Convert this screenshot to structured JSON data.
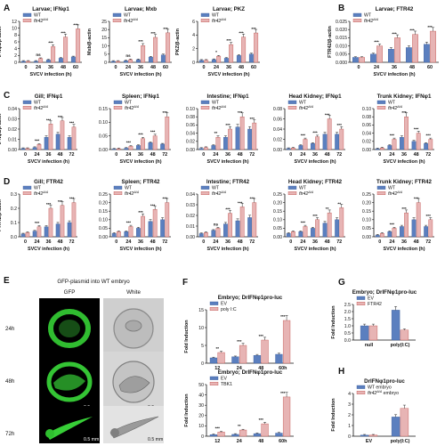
{
  "colors": {
    "wt": "#5b7fbf",
    "mut": "#e7b4b4",
    "mut_edge": "#c0504d",
    "axis": "#111111"
  },
  "legend": {
    "wt": "WT",
    "mut": "ftr42",
    "mut_sup": "Δ/Δ"
  },
  "panelE": {
    "label": "E",
    "title": "GFP-plasmid into WT embryo",
    "col_gfp": "GFP",
    "col_white": "White",
    "rows": [
      "24h",
      "48h",
      "72h"
    ],
    "scale_label": "0.5 mm"
  },
  "chart_data": [
    {
      "panel": "A",
      "type": "bar",
      "title": "Larvae; IFNφ1",
      "ylabel": "IFNφ1/β-actin",
      "xlabel": "SVCV infection (h)",
      "categories": [
        "0",
        "24",
        "36",
        "48",
        "60"
      ],
      "ylim": [
        0,
        12
      ],
      "yticks": [
        0,
        2,
        4,
        6,
        8,
        10,
        12
      ],
      "series": [
        {
          "key": "wt",
          "values": [
            0.3,
            0.3,
            0.7,
            1.2,
            1.6
          ]
        },
        {
          "key": "mut",
          "values": [
            0.3,
            1.1,
            4.6,
            7.4,
            9.8
          ]
        }
      ],
      "sig": [
        "",
        "ns",
        "***",
        "***",
        "***"
      ]
    },
    {
      "panel": "",
      "type": "bar",
      "title": "Larvae; Mxb",
      "ylabel": "Mxb/β-actin",
      "xlabel": "SVCV infection (h)",
      "categories": [
        "0",
        "24",
        "36",
        "48",
        "60"
      ],
      "ylim": [
        0,
        25
      ],
      "yticks": [
        0,
        5,
        10,
        15,
        20,
        25
      ],
      "series": [
        {
          "key": "wt",
          "values": [
            0.6,
            0.9,
            1.6,
            3.2,
            4.5
          ]
        },
        {
          "key": "mut",
          "values": [
            0.6,
            1.6,
            10.2,
            15.2,
            18.0
          ]
        }
      ],
      "sig": [
        "",
        "ns",
        "***",
        "***",
        "***"
      ]
    },
    {
      "panel": "",
      "type": "bar",
      "title": "Larvae; PKZ",
      "ylabel": "PKZ/β-actin",
      "xlabel": "SVCV infection (h)",
      "categories": [
        "0",
        "24",
        "36",
        "48",
        "60"
      ],
      "ylim": [
        0,
        6
      ],
      "yticks": [
        0,
        2,
        4,
        6
      ],
      "series": [
        {
          "key": "wt",
          "values": [
            0.3,
            0.4,
            0.6,
            1.0,
            1.2
          ]
        },
        {
          "key": "mut",
          "values": [
            0.3,
            0.9,
            2.6,
            3.7,
            4.3
          ]
        }
      ],
      "sig": [
        "",
        "*",
        "***",
        "***",
        "***"
      ]
    },
    {
      "panel": "B",
      "type": "bar",
      "title": "Larvae; FTR42",
      "ylabel": "FTR42/β-actin",
      "xlabel": "SVCV infection (h)",
      "categories": [
        "0",
        "24",
        "36",
        "48",
        "60"
      ],
      "ylim": [
        0,
        0.025
      ],
      "yticks": [
        0,
        0.005,
        0.01,
        0.015,
        0.02,
        0.025
      ],
      "tickfmt": 3,
      "series": [
        {
          "key": "wt",
          "values": [
            0.003,
            0.005,
            0.008,
            0.009,
            0.011
          ]
        },
        {
          "key": "mut",
          "values": [
            0.003,
            0.01,
            0.015,
            0.017,
            0.019
          ]
        }
      ],
      "sig": [
        "",
        "***",
        "***",
        "***",
        "***"
      ]
    },
    {
      "panel": "C",
      "type": "bar",
      "title": "Gill; IFNφ1",
      "ylabel": "IFNφ1/β-actin",
      "xlabel": "SVCV infection (h)",
      "categories": [
        "0",
        "24",
        "36",
        "48",
        "72"
      ],
      "ylim": [
        0,
        0.04
      ],
      "yticks": [
        0,
        0.01,
        0.02,
        0.03,
        0.04
      ],
      "tickfmt": 2,
      "series": [
        {
          "key": "wt",
          "values": [
            0.001,
            0.002,
            0.012,
            0.015,
            0.012
          ]
        },
        {
          "key": "mut",
          "values": [
            0.001,
            0.005,
            0.025,
            0.028,
            0.022
          ]
        }
      ],
      "sig": [
        "",
        "***",
        "***",
        "***",
        "***"
      ]
    },
    {
      "panel": "",
      "type": "bar",
      "title": "Spleen; IFNφ1",
      "ylabel": "",
      "xlabel": "SVCV infection (h)",
      "categories": [
        "0",
        "24",
        "36",
        "48",
        "72"
      ],
      "ylim": [
        0,
        0.15
      ],
      "yticks": [
        0,
        0.05,
        0.1,
        0.15
      ],
      "tickfmt": 2,
      "series": [
        {
          "key": "wt",
          "values": [
            0.002,
            0.005,
            0.015,
            0.025,
            0.02
          ]
        },
        {
          "key": "mut",
          "values": [
            0.003,
            0.012,
            0.04,
            0.05,
            0.12
          ]
        }
      ],
      "sig": [
        "",
        "***",
        "***",
        "***",
        "***"
      ]
    },
    {
      "panel": "",
      "type": "bar",
      "title": "Intestine; IFNφ1",
      "ylabel": "",
      "xlabel": "SVCV infection (h)",
      "categories": [
        "0",
        "24",
        "36",
        "48",
        "72"
      ],
      "ylim": [
        0,
        0.1
      ],
      "yticks": [
        0,
        0.02,
        0.04,
        0.06,
        0.08,
        0.1
      ],
      "tickfmt": 2,
      "series": [
        {
          "key": "wt",
          "values": [
            0.003,
            0.01,
            0.03,
            0.055,
            0.05
          ]
        },
        {
          "key": "mut",
          "values": [
            0.005,
            0.03,
            0.05,
            0.08,
            0.065
          ]
        }
      ],
      "sig": [
        "",
        "**",
        "***",
        "***",
        "***"
      ]
    },
    {
      "panel": "",
      "type": "bar",
      "title": "Head Kidney; IFNφ1",
      "ylabel": "",
      "xlabel": "SVCV infection (h)",
      "categories": [
        "0",
        "24",
        "36",
        "48",
        "72"
      ],
      "ylim": [
        0,
        0.08
      ],
      "yticks": [
        0,
        0.02,
        0.04,
        0.06,
        0.08
      ],
      "tickfmt": 2,
      "series": [
        {
          "key": "wt",
          "values": [
            0.002,
            0.008,
            0.012,
            0.03,
            0.03
          ]
        },
        {
          "key": "mut",
          "values": [
            0.003,
            0.02,
            0.025,
            0.06,
            0.04
          ]
        }
      ],
      "sig": [
        "",
        "***",
        "***",
        "***",
        "***"
      ]
    },
    {
      "panel": "",
      "type": "bar",
      "title": "Trunk Kidney; IFNφ1",
      "ylabel": "",
      "xlabel": "SVCV infection (h)",
      "categories": [
        "0",
        "24",
        "36",
        "48",
        "72"
      ],
      "ylim": [
        0,
        0.1
      ],
      "yticks": [
        0,
        0.02,
        0.04,
        0.06,
        0.08,
        0.1
      ],
      "tickfmt": 2,
      "series": [
        {
          "key": "wt",
          "values": [
            0.002,
            0.01,
            0.03,
            0.02,
            0.015
          ]
        },
        {
          "key": "mut",
          "values": [
            0.004,
            0.025,
            0.08,
            0.04,
            0.025
          ]
        }
      ],
      "sig": [
        "",
        "***",
        "***",
        "***",
        "***"
      ]
    },
    {
      "panel": "D",
      "type": "bar",
      "title": "Gill; FTR42",
      "ylabel": "FTR42/β-actin",
      "xlabel": "SVCV infection (h)",
      "categories": [
        "0",
        "24",
        "36",
        "48",
        "72"
      ],
      "ylim": [
        0,
        0.3
      ],
      "yticks": [
        0,
        0.1,
        0.2,
        0.3
      ],
      "tickfmt": 1,
      "series": [
        {
          "key": "wt",
          "values": [
            0.02,
            0.04,
            0.07,
            0.09,
            0.1
          ]
        },
        {
          "key": "mut",
          "values": [
            0.03,
            0.07,
            0.2,
            0.22,
            0.24
          ]
        }
      ],
      "sig": [
        "",
        "***",
        "***",
        "***",
        "***"
      ]
    },
    {
      "panel": "",
      "type": "bar",
      "title": "Spleen; FTR42",
      "ylabel": "",
      "xlabel": "SVCV infection (h)",
      "categories": [
        "0",
        "24",
        "36",
        "48",
        "72"
      ],
      "ylim": [
        0,
        0.25
      ],
      "yticks": [
        0,
        0.05,
        0.1,
        0.15,
        0.2,
        0.25
      ],
      "tickfmt": 2,
      "series": [
        {
          "key": "wt",
          "values": [
            0.02,
            0.03,
            0.05,
            0.09,
            0.1
          ]
        },
        {
          "key": "mut",
          "values": [
            0.03,
            0.06,
            0.12,
            0.16,
            0.2
          ]
        }
      ],
      "sig": [
        "",
        "***",
        "***",
        "***",
        "***"
      ]
    },
    {
      "panel": "",
      "type": "bar",
      "title": "Intestine; FTR42",
      "ylabel": "",
      "xlabel": "SVCV infection (h)",
      "categories": [
        "0",
        "24",
        "36",
        "48",
        "72"
      ],
      "ylim": [
        0,
        0.04
      ],
      "yticks": [
        0,
        0.01,
        0.02,
        0.03,
        0.04
      ],
      "tickfmt": 2,
      "series": [
        {
          "key": "wt",
          "values": [
            0.003,
            0.006,
            0.012,
            0.015,
            0.018
          ]
        },
        {
          "key": "mut",
          "values": [
            0.004,
            0.008,
            0.022,
            0.028,
            0.032
          ]
        }
      ],
      "sig": [
        "",
        "ns",
        "***",
        "***",
        "***"
      ]
    },
    {
      "panel": "",
      "type": "bar",
      "title": "Head Kidney; FTR42",
      "ylabel": "",
      "xlabel": "SVCV infection (h)",
      "categories": [
        "0",
        "24",
        "36",
        "48",
        "72"
      ],
      "ylim": [
        0,
        0.25
      ],
      "yticks": [
        0,
        0.05,
        0.1,
        0.15,
        0.2,
        0.25
      ],
      "tickfmt": 2,
      "series": [
        {
          "key": "wt",
          "values": [
            0.02,
            0.03,
            0.05,
            0.08,
            0.1
          ]
        },
        {
          "key": "mut",
          "values": [
            0.03,
            0.06,
            0.1,
            0.14,
            0.17
          ]
        }
      ],
      "sig": [
        "",
        "***",
        "***",
        "**",
        "**"
      ]
    },
    {
      "panel": "",
      "type": "bar",
      "title": "Trunk Kidney; FTR42",
      "ylabel": "",
      "xlabel": "SVCV infection (h)",
      "categories": [
        "0",
        "24",
        "36",
        "48",
        "72"
      ],
      "ylim": [
        0,
        0.25
      ],
      "yticks": [
        0,
        0.05,
        0.1,
        0.15,
        0.2,
        0.25
      ],
      "tickfmt": 2,
      "series": [
        {
          "key": "wt",
          "values": [
            0.01,
            0.03,
            0.06,
            0.1,
            0.06
          ]
        },
        {
          "key": "mut",
          "values": [
            0.02,
            0.05,
            0.14,
            0.2,
            0.1
          ]
        }
      ],
      "sig": [
        "",
        "***",
        "***",
        "***",
        "***"
      ]
    },
    {
      "panel": "F",
      "type": "bar",
      "title": "Embryo; DrIFNφ1pro-luc",
      "ylabel": "Fold Induction",
      "xlabel": "",
      "categories": [
        "12",
        "24",
        "48",
        "60h"
      ],
      "ylim": [
        0,
        15
      ],
      "yticks": [
        0,
        5,
        10,
        15
      ],
      "series": [
        {
          "key": "ev",
          "name": "EV",
          "values": [
            1.5,
            1.8,
            2.2,
            2.5
          ]
        },
        {
          "key": "mut",
          "name": "poly I:C",
          "values": [
            3.0,
            5.0,
            6.5,
            12.0
          ]
        }
      ],
      "sig": [
        "**",
        "***",
        "***",
        "***"
      ]
    },
    {
      "panel": "",
      "type": "bar",
      "title": "Embryo; DrIFNφ1pro-luc",
      "ylabel": "Fold Induction",
      "xlabel": "",
      "categories": [
        "12",
        "24",
        "48",
        "60h"
      ],
      "ylim": [
        0,
        50
      ],
      "yticks": [
        0,
        10,
        20,
        30,
        40,
        50
      ],
      "series": [
        {
          "key": "ev",
          "name": "EV",
          "values": [
            1.5,
            1.8,
            2.5,
            3.0
          ]
        },
        {
          "key": "mut",
          "name": "TBK1",
          "values": [
            4.0,
            6.0,
            12.0,
            38.0
          ]
        }
      ],
      "sig": [
        "***",
        "**",
        "***",
        "***"
      ]
    },
    {
      "panel": "G",
      "type": "bar",
      "title": "Embryo; DrIFNφ1pro-luc",
      "ylabel": "Fold Induction",
      "xlabel": "",
      "categories": [
        "null",
        "poly(I:C)"
      ],
      "ylim": [
        0,
        2.5
      ],
      "yticks": [
        0,
        0.5,
        1,
        1.5,
        2,
        2.5
      ],
      "tickfmt": 1,
      "series": [
        {
          "key": "ev",
          "name": "EV",
          "values": [
            1.0,
            2.1
          ]
        },
        {
          "key": "mut",
          "name": "FTR42",
          "values": [
            1.0,
            0.7
          ]
        }
      ],
      "sig": [
        "",
        ""
      ]
    },
    {
      "panel": "H",
      "type": "bar",
      "title": "DrIFNφ1pro-luc",
      "ylabel": "Fold Induction",
      "xlabel": "",
      "categories": [
        "EV",
        "poly(I:C)"
      ],
      "ylim": [
        0,
        4
      ],
      "yticks": [
        0,
        1,
        2,
        3,
        4
      ],
      "series": [
        {
          "key": "ev",
          "name": "WT embryo",
          "values": [
            0.1,
            1.8
          ]
        },
        {
          "key": "mut",
          "name": "ftr42",
          "name_sup": "Δ/Δ",
          "name_tail": " embryo",
          "values": [
            0.1,
            2.6
          ]
        }
      ],
      "sig": [
        "",
        ""
      ]
    }
  ]
}
